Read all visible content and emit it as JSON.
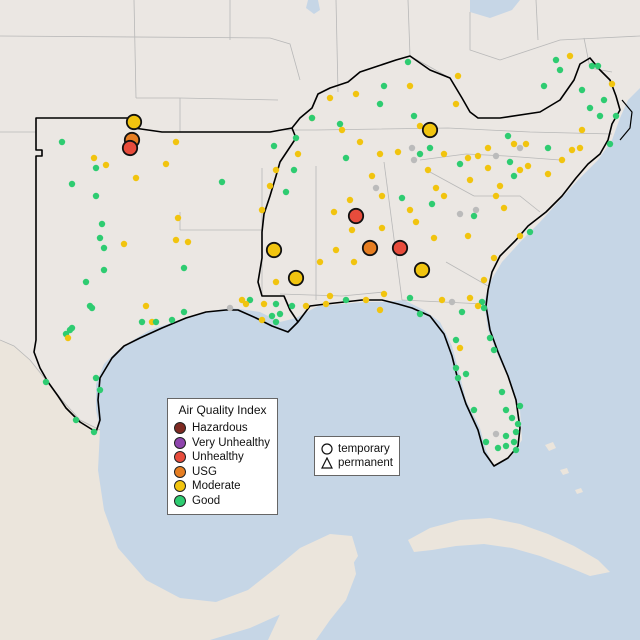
{
  "legend": {
    "title": "Air Quality Index",
    "items": [
      {
        "label": "Hazardous",
        "color": "#7e2a22"
      },
      {
        "label": "Very Unhealthy",
        "color": "#8e44ad"
      },
      {
        "label": "Unhealthy",
        "color": "#e74c3c"
      },
      {
        "label": "USG",
        "color": "#e67e22"
      },
      {
        "label": "Moderate",
        "color": "#f1c40f"
      },
      {
        "label": "Good",
        "color": "#2ecc71"
      }
    ]
  },
  "shape_legend": {
    "temporary": "temporary",
    "permanent": "permanent"
  },
  "colors": {
    "water": "#c6d6e6",
    "land": "#ebe7e3",
    "state_border": "#b8b8b8",
    "region_outline": "#000000",
    "no_data": "#bbbbbb"
  }
}
